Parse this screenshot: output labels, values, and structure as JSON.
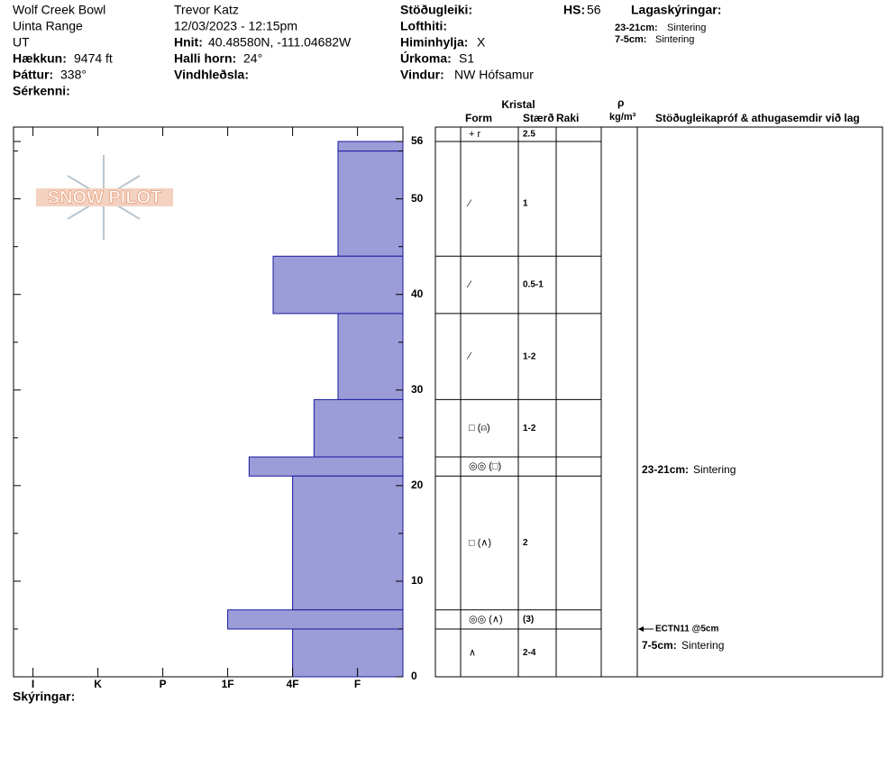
{
  "header": {
    "location": "Wolf Creek Bowl",
    "range": "Uinta Range",
    "state": "UT",
    "elevation_label": "Hækkun:",
    "elevation": "9474 ft",
    "aspect_label": "Þáttur:",
    "aspect": "338°",
    "features_label": "Sérkenni:",
    "observer": "Trevor Katz",
    "datetime": "12/03/2023 - 12:15pm",
    "coords_label": "Hnit:",
    "coords": "40.48580N, -111.04682W",
    "slope_label": "Halli horn:",
    "slope": "24°",
    "wind_loading_label": "Vindhleðsla:",
    "stability_label": "Stöðugleiki:",
    "air_temp_label": "Lofthiti:",
    "sky_label": "Himinhylja:",
    "sky": "X",
    "precip_label": "Úrkoma:",
    "precip": "S1",
    "wind_label": "Vindur:",
    "wind": "NW Hófsamur",
    "hs_label": "HS:",
    "hs": "56",
    "notes_title": "Lagaskýringar:"
  },
  "layer_notes": [
    {
      "label": "23-21cm:",
      "text": "Sintering"
    },
    {
      "label": "7-5cm:",
      "text": "Sintering"
    }
  ],
  "logo": "SNOW PILOT",
  "chart_data": {
    "type": "snow-profile",
    "xlim": [
      6.3,
      0.3
    ],
    "xticks": [
      {
        "value": 6,
        "label": "I"
      },
      {
        "value": 5,
        "label": "K"
      },
      {
        "value": 4,
        "label": "P"
      },
      {
        "value": 3,
        "label": "1F"
      },
      {
        "value": 2,
        "label": "4F"
      },
      {
        "value": 1,
        "label": "F"
      }
    ],
    "ylim": [
      0,
      56
    ],
    "yticks": [
      0,
      10,
      20,
      30,
      40,
      50,
      56
    ],
    "yminorticks": [
      5,
      15,
      25,
      35,
      45,
      55
    ],
    "bar_color": "#9c9cd8",
    "edge_color": "#1a1aa0",
    "layers": [
      {
        "top": 56,
        "bottom": 55,
        "hardness": 1.3,
        "form": "+ r",
        "size": "2.5"
      },
      {
        "top": 55,
        "bottom": 44,
        "hardness": 1.3,
        "form": "⁄",
        "size": "1"
      },
      {
        "top": 44,
        "bottom": 38,
        "hardness": 2.3,
        "form": "⁄",
        "size": "0.5-1"
      },
      {
        "top": 38,
        "bottom": 29,
        "hardness": 1.3,
        "form": "⁄",
        "size": "1-2"
      },
      {
        "top": 29,
        "bottom": 23,
        "hardness": 1.67,
        "form": "□ (⍝)",
        "size": "1-2"
      },
      {
        "top": 23,
        "bottom": 21,
        "hardness": 2.67,
        "form": "◎◎ (□)"
      },
      {
        "top": 21,
        "bottom": 7,
        "hardness": 2,
        "form": "□ (∧)",
        "size": "2"
      },
      {
        "top": 7,
        "bottom": 5,
        "hardness": 3,
        "form": "◎◎ (∧)",
        "size": "(3)"
      },
      {
        "top": 5,
        "bottom": 0,
        "hardness": 2,
        "form": "∧",
        "size": "2-4"
      }
    ],
    "columns": {
      "crystal": "Kristal",
      "form": "Form",
      "size": "Stærð",
      "moisture": "Raki",
      "density": "ρ",
      "density_unit": "kg/m³",
      "comments": "Stöðugleikapróf & athugasemdir við lag"
    },
    "tests": [
      {
        "height": 5,
        "label": "ECTN11 @5cm"
      }
    ]
  },
  "footer": "Skýringar:"
}
